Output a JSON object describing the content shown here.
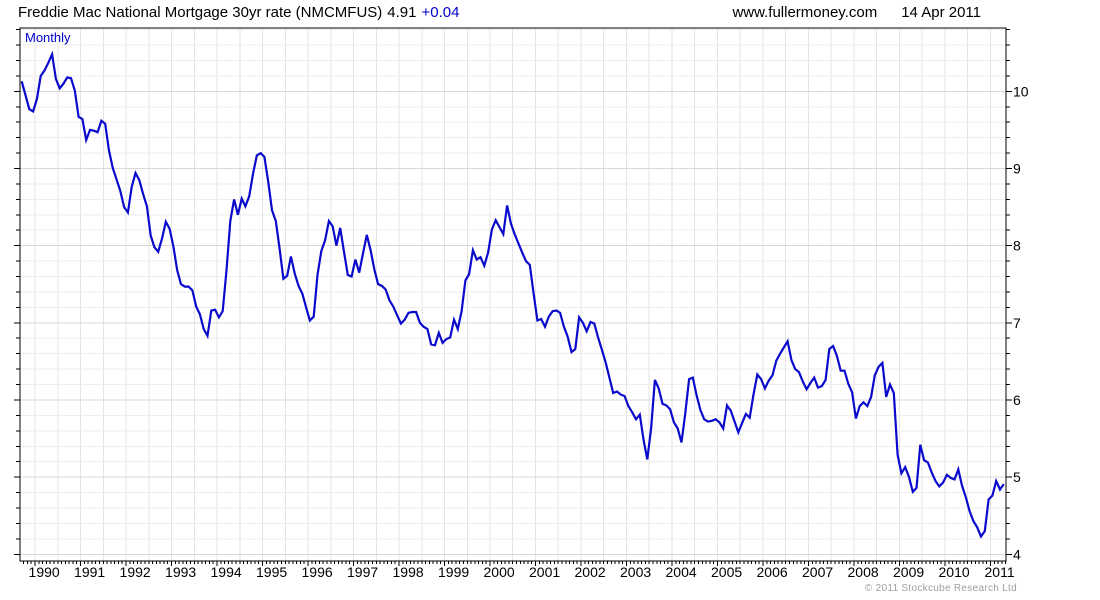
{
  "header": {
    "title": "Freddie Mac National Mortgage 30yr rate (NMCMFUS)",
    "last_price": "4.91",
    "change": "+0.04",
    "website": "www.fullermoney.com",
    "date": "14 Apr 2011"
  },
  "footer": {
    "copyright": "© 2011 Stockcube Research Ltd"
  },
  "colors": {
    "line": "#0a0acc",
    "accent_text": "#0000cc",
    "grid_minor": "#eeeeee",
    "grid_major": "#d8d8d8",
    "grid_vertical": "#e3e3e3",
    "axis": "#000000",
    "copyright": "#9e9e9e"
  },
  "chart_data": {
    "type": "line",
    "title": "Freddie Mac National Mortgage 30yr rate (NMCMFUS) 4.91 +0.04",
    "frequency_label": "Monthly",
    "x_tick_labels": [
      "1990",
      "1991",
      "1992",
      "1993",
      "1994",
      "1995",
      "1996",
      "1997",
      "1998",
      "1999",
      "2000",
      "2001",
      "2002",
      "2003",
      "2004",
      "2005",
      "2006",
      "2007",
      "2008",
      "2009",
      "2010",
      "2011"
    ],
    "y_tick_labels": [
      10,
      9,
      8,
      7,
      6,
      5,
      4
    ],
    "x_domain": [
      1989.67,
      2011.341
    ],
    "y_domain": [
      3.913,
      10.821
    ],
    "grid": {
      "x_interval_years": 0.5,
      "y_minor_interval": 0.2,
      "y_major_interval": 1.0
    },
    "legend_position": "none",
    "series": [
      {
        "name": "Freddie Mac National Mortgage 30yr rate (NMCMFUS)",
        "frequency": "monthly",
        "start": {
          "year": 1989,
          "month": 9
        },
        "end": {
          "year": 2011,
          "month": 4
        },
        "values": [
          10.13,
          9.95,
          9.77,
          9.74,
          9.9,
          10.2,
          10.27,
          10.37,
          10.48,
          10.16,
          10.04,
          10.1,
          10.18,
          10.17,
          10.01,
          9.67,
          9.64,
          9.37,
          9.5,
          9.49,
          9.47,
          9.62,
          9.58,
          9.24,
          9.01,
          8.86,
          8.71,
          8.5,
          8.43,
          8.76,
          8.94,
          8.85,
          8.67,
          8.51,
          8.13,
          7.98,
          7.92,
          8.09,
          8.31,
          8.22,
          7.99,
          7.68,
          7.5,
          7.47,
          7.47,
          7.42,
          7.21,
          7.11,
          6.92,
          6.83,
          7.16,
          7.17,
          7.07,
          7.15,
          7.68,
          8.32,
          8.6,
          8.4,
          8.61,
          8.51,
          8.64,
          8.93,
          9.17,
          9.2,
          9.15,
          8.83,
          8.46,
          8.32,
          7.96,
          7.57,
          7.61,
          7.86,
          7.64,
          7.48,
          7.38,
          7.2,
          7.03,
          7.08,
          7.62,
          7.93,
          8.07,
          8.32,
          8.25,
          8.0,
          8.23,
          7.92,
          7.62,
          7.6,
          7.82,
          7.65,
          7.9,
          8.14,
          7.94,
          7.69,
          7.5,
          7.48,
          7.43,
          7.29,
          7.21,
          7.1,
          6.99,
          7.04,
          7.13,
          7.14,
          7.14,
          7.0,
          6.95,
          6.92,
          6.72,
          6.71,
          6.87,
          6.74,
          6.79,
          6.81,
          7.04,
          6.92,
          7.15,
          7.55,
          7.63,
          7.94,
          7.82,
          7.85,
          7.74,
          7.91,
          8.21,
          8.33,
          8.24,
          8.15,
          8.52,
          8.29,
          8.15,
          8.03,
          7.91,
          7.8,
          7.75,
          7.38,
          7.03,
          7.05,
          6.95,
          7.08,
          7.15,
          7.16,
          7.13,
          6.95,
          6.82,
          6.62,
          6.66,
          7.07,
          7.0,
          6.89,
          7.01,
          6.99,
          6.81,
          6.65,
          6.49,
          6.29,
          6.09,
          6.11,
          6.07,
          6.05,
          5.92,
          5.84,
          5.75,
          5.81,
          5.48,
          5.23,
          5.63,
          6.26,
          6.15,
          5.95,
          5.93,
          5.88,
          5.71,
          5.63,
          5.45,
          5.83,
          6.27,
          6.29,
          6.06,
          5.87,
          5.75,
          5.72,
          5.73,
          5.75,
          5.71,
          5.63,
          5.93,
          5.86,
          5.72,
          5.58,
          5.7,
          5.82,
          5.77,
          6.07,
          6.33,
          6.27,
          6.15,
          6.25,
          6.32,
          6.51,
          6.6,
          6.68,
          6.76,
          6.52,
          6.4,
          6.36,
          6.24,
          6.14,
          6.22,
          6.29,
          6.16,
          6.18,
          6.26,
          6.66,
          6.7,
          6.57,
          6.38,
          6.38,
          6.21,
          6.1,
          5.76,
          5.92,
          5.97,
          5.92,
          6.04,
          6.32,
          6.43,
          6.48,
          6.04,
          6.2,
          6.09,
          5.29,
          5.05,
          5.13,
          5.0,
          4.81,
          4.86,
          5.42,
          5.22,
          5.19,
          5.06,
          4.95,
          4.88,
          4.93,
          5.03,
          4.99,
          4.97,
          5.1,
          4.89,
          4.74,
          4.56,
          4.43,
          4.35,
          4.23,
          4.3,
          4.71,
          4.76,
          4.95,
          4.84,
          4.91
        ]
      }
    ]
  }
}
